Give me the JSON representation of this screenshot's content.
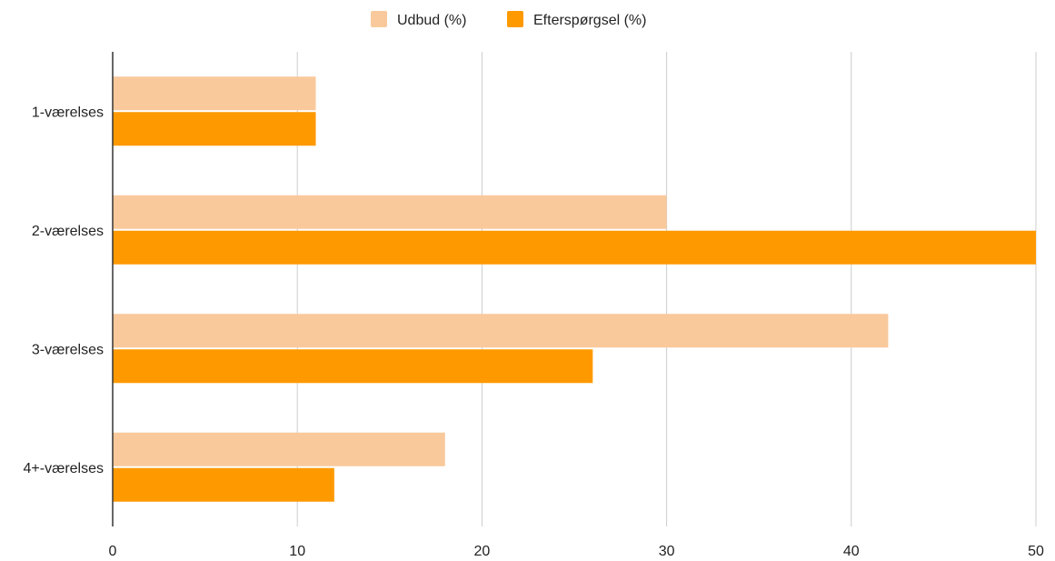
{
  "chart_data": {
    "type": "bar",
    "orientation": "horizontal",
    "categories": [
      "1-værelses",
      "2-værelses",
      "3-værelses",
      "4+-værelses"
    ],
    "series": [
      {
        "name": "Udbud (%)",
        "values": [
          11,
          30,
          42,
          18
        ],
        "color": "#f9c99c"
      },
      {
        "name": "Efterspørgsel (%)",
        "values": [
          11,
          50,
          26,
          12
        ],
        "color": "#ff9900"
      }
    ],
    "title": "",
    "xlabel": "",
    "ylabel": "",
    "xlim": [
      0,
      50
    ],
    "xticks": [
      0,
      10,
      20,
      30,
      40,
      50
    ],
    "grid": true,
    "legend_position": "top-center"
  },
  "colors": {
    "grid": "#cccccc",
    "axis": "#333333",
    "text": "#222222"
  }
}
